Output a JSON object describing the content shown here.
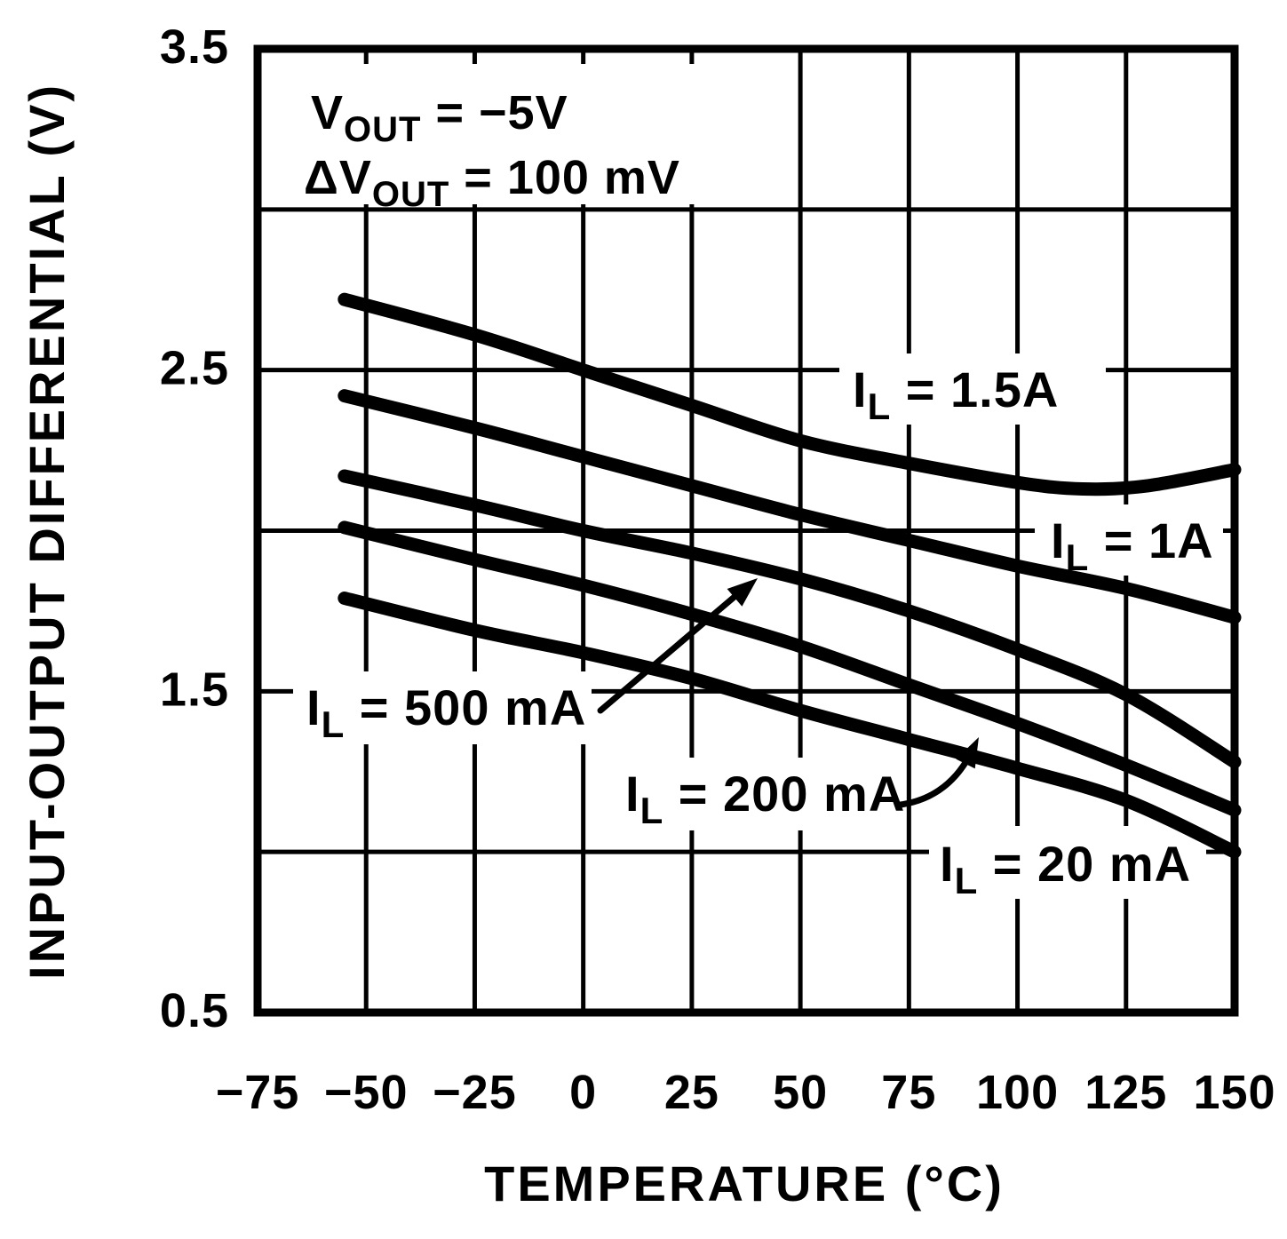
{
  "colors": {
    "foreground": "#000000",
    "background": "#ffffff"
  },
  "chart_data": {
    "type": "line",
    "title": "",
    "xlabel": "TEMPERATURE (°C)",
    "ylabel": "INPUT-OUTPUT DIFFERENTIAL (V)",
    "xlim": [
      -75,
      150
    ],
    "ylim": [
      0.5,
      3.5
    ],
    "grid": {
      "on": true,
      "x_step": 25,
      "y_step": 0.5
    },
    "x_ticks": [
      -75,
      -50,
      -25,
      0,
      25,
      50,
      75,
      100,
      125,
      150
    ],
    "x_tick_labels": [
      "−75",
      "−50",
      "−25",
      "0",
      "25",
      "50",
      "75",
      "100",
      "125",
      "150"
    ],
    "y_ticks": [
      3.5,
      2.5,
      1.5,
      0.5
    ],
    "y_tick_labels": [
      "3.5",
      "2.5",
      "1.5",
      "0.5"
    ],
    "legend_position": "inline-labels",
    "annotations": [
      {
        "text": "VOUT = −5V",
        "pre": "V",
        "sub": "OUT",
        "rest": " = −5V"
      },
      {
        "text": "ΔVOUT = 100 mV",
        "pre": "ΔV",
        "sub": "OUT",
        "rest": " = 100 mV"
      }
    ],
    "series": [
      {
        "id": "il-1p5a",
        "name": "IL = 1.5A",
        "label": {
          "pre": "I",
          "sub": "L",
          "rest": " = 1.5A"
        },
        "x": [
          -55,
          -25,
          0,
          25,
          50,
          75,
          100,
          115,
          130,
          150
        ],
        "y": [
          2.72,
          2.61,
          2.5,
          2.39,
          2.28,
          2.21,
          2.15,
          2.13,
          2.14,
          2.19
        ]
      },
      {
        "id": "il-1a",
        "name": "IL = 1A",
        "label": {
          "pre": "I",
          "sub": "L",
          "rest": " = 1A"
        },
        "x": [
          -55,
          -25,
          0,
          25,
          50,
          75,
          100,
          125,
          150
        ],
        "y": [
          2.42,
          2.32,
          2.23,
          2.14,
          2.05,
          1.97,
          1.89,
          1.82,
          1.73
        ]
      },
      {
        "id": "il-500ma",
        "name": "IL = 500 mA",
        "label": {
          "pre": "I",
          "sub": "L",
          "rest": " = 500 mA"
        },
        "x": [
          -55,
          -25,
          0,
          25,
          50,
          75,
          100,
          125,
          150
        ],
        "y": [
          2.17,
          2.08,
          2.0,
          1.93,
          1.85,
          1.75,
          1.63,
          1.49,
          1.28
        ]
      },
      {
        "id": "il-200ma",
        "name": "IL = 200 mA",
        "label": {
          "pre": "I",
          "sub": "L",
          "rest": " = 200 mA"
        },
        "x": [
          -55,
          -25,
          0,
          25,
          50,
          75,
          100,
          125,
          150
        ],
        "y": [
          2.01,
          1.91,
          1.83,
          1.74,
          1.64,
          1.52,
          1.4,
          1.27,
          1.13
        ]
      },
      {
        "id": "il-20ma",
        "name": "IL = 20 mA",
        "label": {
          "pre": "I",
          "sub": "L",
          "rest": " = 20 mA"
        },
        "x": [
          -55,
          -25,
          0,
          25,
          50,
          75,
          100,
          125,
          150
        ],
        "y": [
          1.79,
          1.69,
          1.62,
          1.54,
          1.44,
          1.35,
          1.26,
          1.16,
          1.0
        ]
      }
    ]
  }
}
